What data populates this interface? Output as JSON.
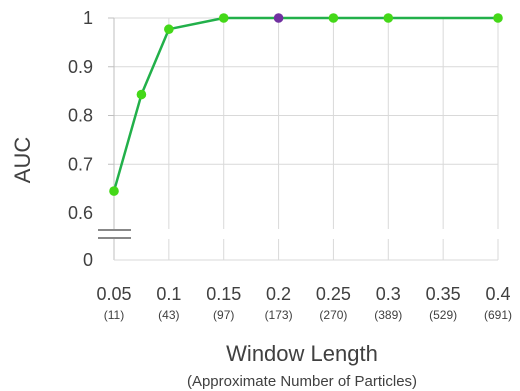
{
  "chart_data": {
    "type": "line",
    "xlabel": "Window Length",
    "xlabel_sub": "(Approximate Number of Particles)",
    "ylabel": "AUC",
    "x": [
      0.05,
      0.075,
      0.1,
      0.15,
      0.2,
      0.25,
      0.3,
      0.4
    ],
    "series": [
      {
        "values": [
          0.645,
          0.843,
          0.977,
          1.0,
          1.0,
          1.0,
          1.0,
          1.0
        ]
      }
    ],
    "highlight_index": 4,
    "x_ticks": [
      {
        "value": 0.05,
        "label": "0.05",
        "sub": "(11)"
      },
      {
        "value": 0.1,
        "label": "0.1",
        "sub": "(43)"
      },
      {
        "value": 0.15,
        "label": "0.15",
        "sub": "(97)"
      },
      {
        "value": 0.2,
        "label": "0.2",
        "sub": "(173)"
      },
      {
        "value": 0.25,
        "label": "0.25",
        "sub": "(270)"
      },
      {
        "value": 0.3,
        "label": "0.3",
        "sub": "(389)"
      },
      {
        "value": 0.35,
        "label": "0.35",
        "sub": "(529)"
      },
      {
        "value": 0.4,
        "label": "0.4",
        "sub": "(691)"
      }
    ],
    "y_ticks": [
      "1",
      "0.9",
      "0.8",
      "0.7",
      "0.6",
      "0"
    ],
    "ylim": [
      0.6,
      1
    ],
    "y_axis_break": true,
    "grid": true,
    "colors": {
      "line": "#22b04a",
      "marker": "#44d818",
      "highlight": "#7030a0",
      "grid": "#d9d9d9"
    }
  }
}
